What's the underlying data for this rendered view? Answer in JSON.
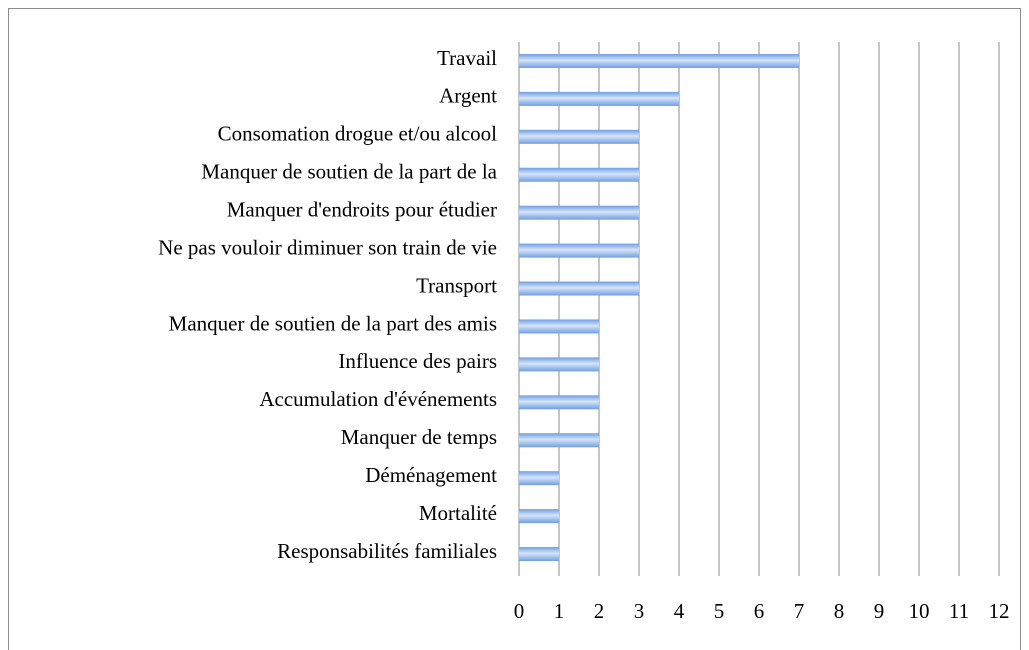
{
  "chart_data": {
    "type": "hbar",
    "categories": [
      "Travail",
      "Argent",
      "Consomation drogue et/ou alcool",
      "Manquer de soutien de la part de la",
      "Manquer d'endroits pour étudier",
      "Ne pas vouloir diminuer son train de vie",
      "Transport",
      "Manquer de soutien de la part des amis",
      "Influence des pairs",
      "Accumulation d'événements",
      "Manquer de temps",
      "Déménagement",
      "Mortalité",
      "Responsabilités familiales"
    ],
    "values": [
      7,
      4,
      3,
      3,
      3,
      3,
      3,
      2,
      2,
      2,
      2,
      1,
      1,
      1
    ],
    "color": "#6f9fe3",
    "xlim": [
      0,
      12
    ],
    "xticks": [
      0,
      1,
      2,
      3,
      4,
      5,
      6,
      7,
      8,
      9,
      10,
      11,
      12
    ],
    "grid": true
  }
}
